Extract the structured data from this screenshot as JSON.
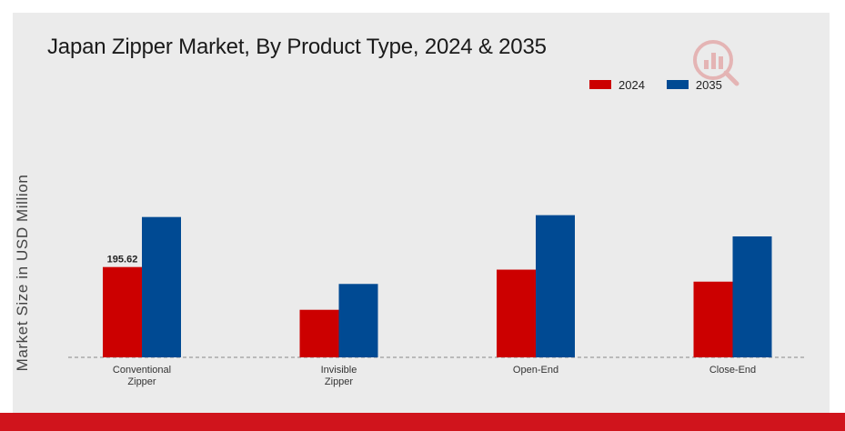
{
  "chart_data": {
    "type": "bar",
    "title": "Japan Zipper Market, By Product Type, 2024 & 2035",
    "ylabel": "Market Size in USD Million",
    "xlabel": "",
    "categories": [
      [
        "Conventional",
        "Zipper"
      ],
      [
        "Invisible",
        "Zipper"
      ],
      [
        "Open-End"
      ],
      [
        "Close-End"
      ]
    ],
    "series": [
      {
        "name": "2024",
        "color": "#cc0000",
        "values": [
          195.62,
          103,
          190,
          164
        ]
      },
      {
        "name": "2035",
        "color": "#004a93",
        "values": [
          304,
          159,
          308,
          262
        ]
      }
    ],
    "data_labels": [
      {
        "series": 0,
        "index": 0,
        "text": "195.62"
      }
    ],
    "ylim": [
      0,
      400
    ],
    "grid": false,
    "legend_position": "top-right"
  }
}
